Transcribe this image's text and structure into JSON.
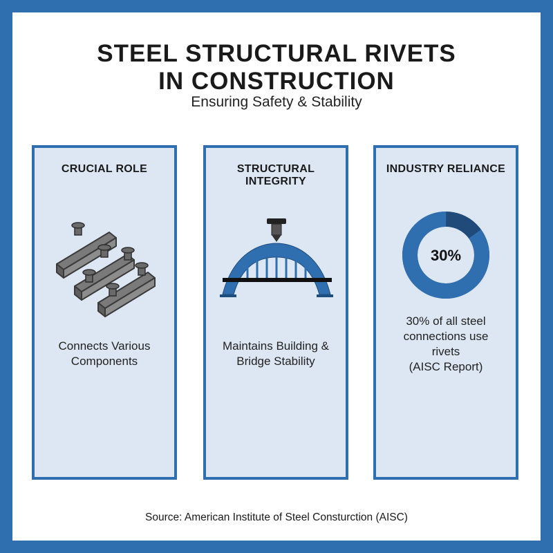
{
  "title": {
    "line1": "STEEL STRUCTURAL RIVETS",
    "line2": "IN CONSTRUCTION"
  },
  "subtitle": "Ensuring Safety & Stability",
  "colors": {
    "border": "#2f6fb0",
    "panel_bg": "#dde7f3",
    "donut_main": "#2f6fb0",
    "donut_rest": "#1f4a7a"
  },
  "panels": [
    {
      "title": "CRUCIAL ROLE",
      "icon": "riveted-beams-icon",
      "desc": [
        "Connects Various",
        "Components"
      ]
    },
    {
      "title": "STRUCTURAL INTEGRITY",
      "icon": "arch-bridge-rivet-icon",
      "desc": [
        "Maintains Building &",
        "Bridge Stability"
      ]
    },
    {
      "title": "INDUSTRY RELIANCE",
      "icon": "donut-chart",
      "donut_value": 0.3,
      "donut_label": "30%",
      "desc": [
        "30% of all steel",
        "connections use",
        "rivets",
        "(AISC Report)"
      ]
    }
  ],
  "source": "Source: American Institute of Steel Consturction (AISC)"
}
